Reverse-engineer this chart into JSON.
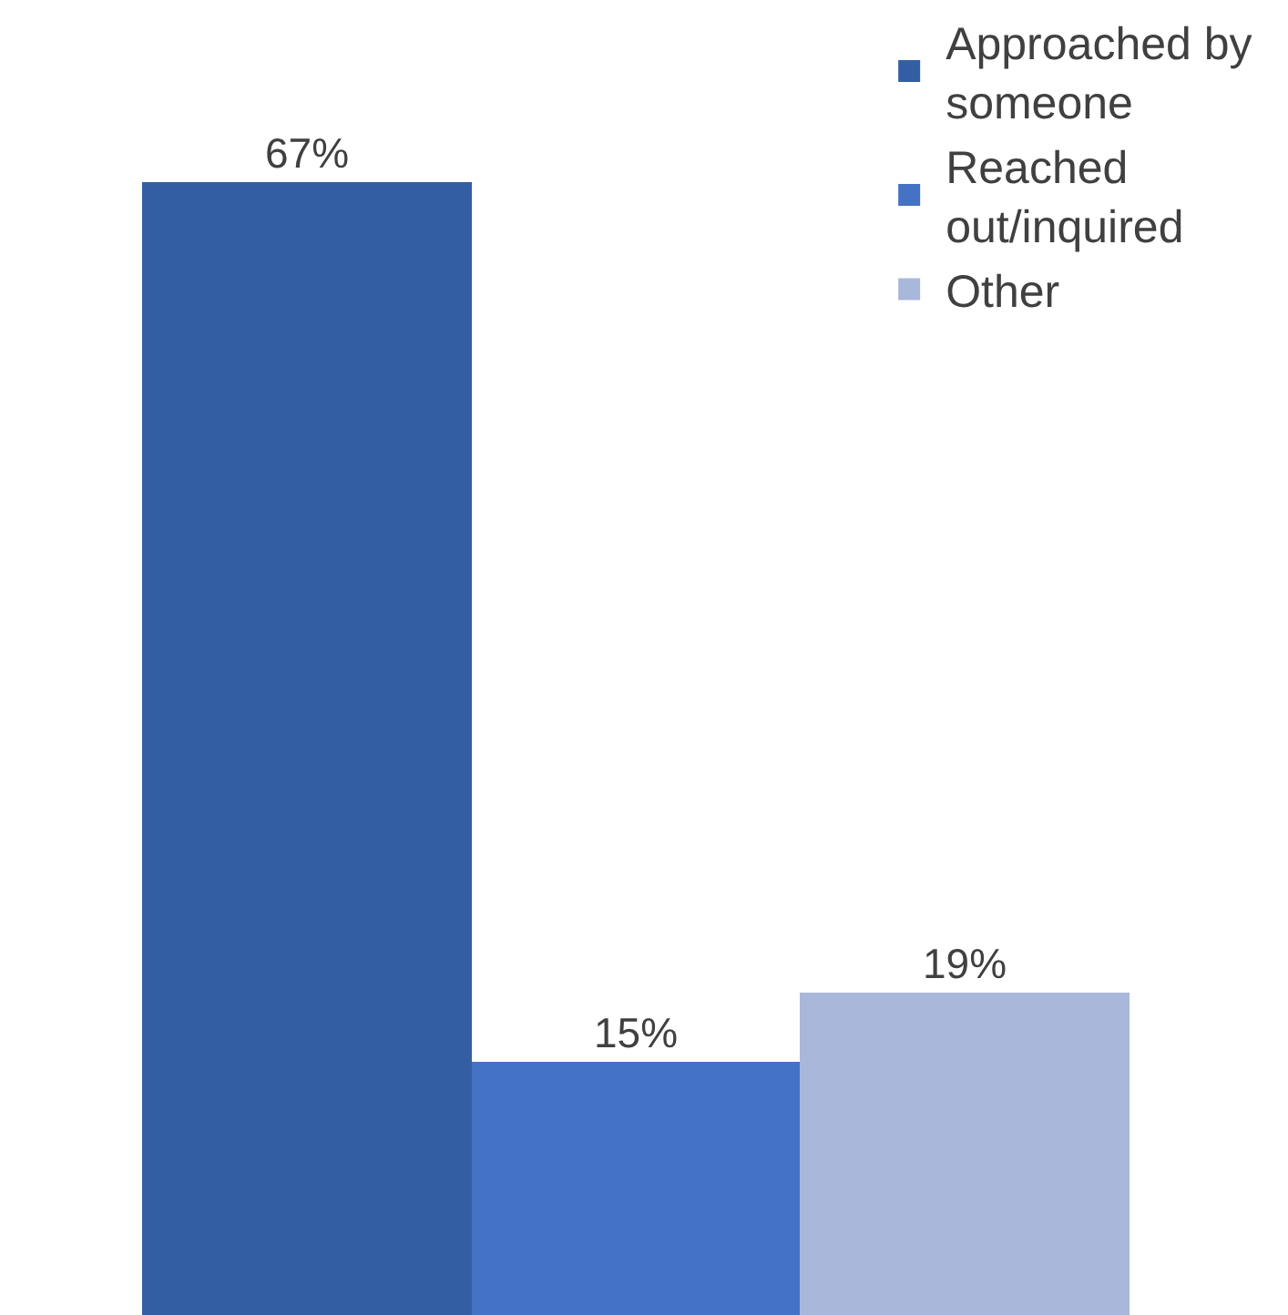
{
  "chart_data": {
    "type": "bar",
    "categories": [
      null
    ],
    "series": [
      {
        "name": "Approached by someone",
        "color": "#335ea4",
        "values": [
          67
        ],
        "value_labels": [
          "67%"
        ]
      },
      {
        "name": "Reached out/inquired",
        "color": "#4472c4",
        "values": [
          15
        ],
        "value_labels": [
          "15%"
        ]
      },
      {
        "name": "Other",
        "color": "#a9b7db",
        "values": [
          19
        ],
        "value_labels": [
          "19%"
        ]
      }
    ],
    "legend": "top right"
  }
}
